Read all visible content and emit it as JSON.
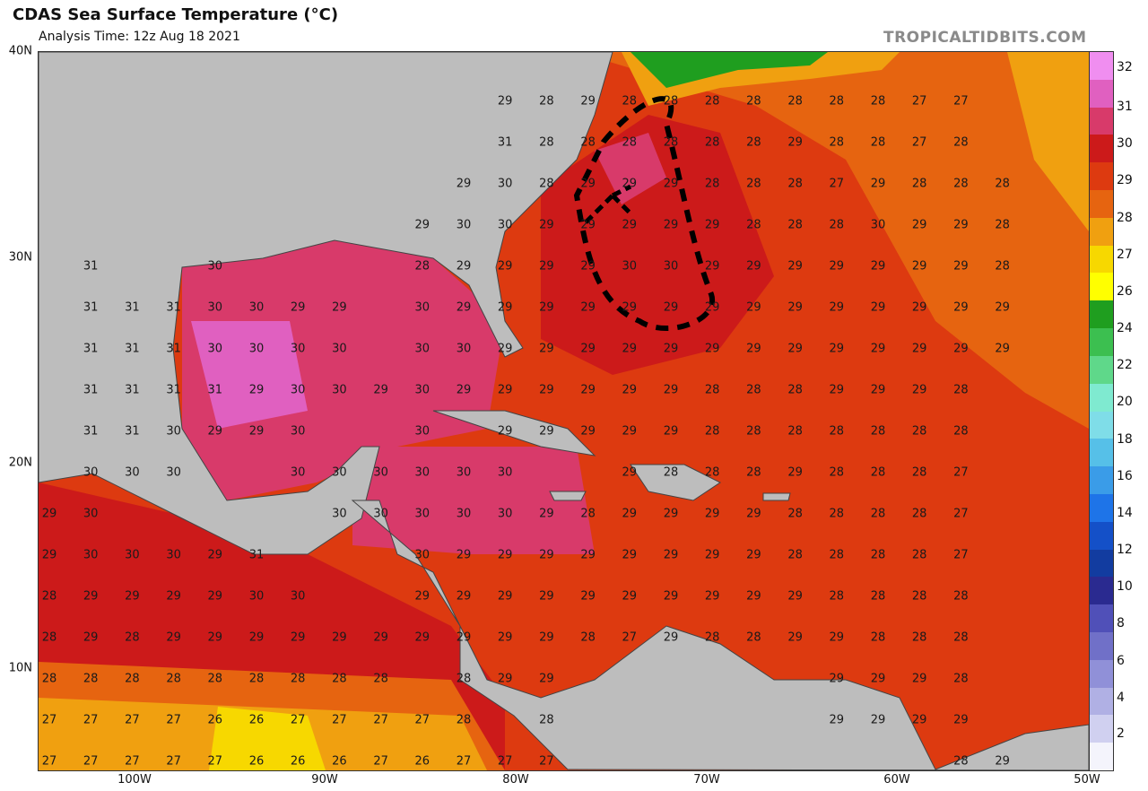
{
  "header": {
    "title": "CDAS Sea Surface Temperature (°C)",
    "subtitle": "Analysis Time: 12z Aug 18 2021",
    "brand": "TROPICALTIDBITS.COM"
  },
  "axes": {
    "lat_labels": [
      "40N",
      "30N",
      "20N",
      "10N"
    ],
    "lon_labels": [
      "100W",
      "90W",
      "80W",
      "70W",
      "60W",
      "50W"
    ]
  },
  "colorbar": {
    "labels": [
      "32",
      "31",
      "30",
      "29",
      "28",
      "27",
      "26",
      "24",
      "22",
      "20",
      "18",
      "16",
      "14",
      "12",
      "10",
      "8",
      "6",
      "4",
      "2"
    ],
    "colors": [
      "#f08ef0",
      "#e060c0",
      "#d83a6a",
      "#cc1a1a",
      "#dd3a10",
      "#e66410",
      "#f0a010",
      "#f7d800",
      "#ffff00",
      "#1f9e1f",
      "#3cbf50",
      "#5fd88a",
      "#7fead0",
      "#7fdde8",
      "#56c0e8",
      "#3a9ce8",
      "#1e74e8",
      "#1450c8",
      "#123ca0",
      "#2a2a90",
      "#5050b8",
      "#7070c8",
      "#9090d8",
      "#b0b0e4",
      "#d0d0f0",
      "#f4f4fc"
    ]
  },
  "sst_grid": {
    "rows": [
      {
        "lat": "row1",
        "vals": [
          "",
          "",
          "",
          "",
          "",
          "",
          "",
          "",
          "",
          "",
          "",
          "29",
          "28",
          "29",
          "28",
          "28",
          "28",
          "28",
          "28",
          "28",
          "28",
          "27",
          "27"
        ]
      },
      {
        "lat": "row2",
        "vals": [
          "",
          "",
          "",
          "",
          "",
          "",
          "",
          "",
          "",
          "",
          "",
          "31",
          "28",
          "28",
          "28",
          "28",
          "28",
          "28",
          "29",
          "28",
          "28",
          "27",
          "28"
        ]
      },
      {
        "lat": "row3",
        "vals": [
          "",
          "",
          "",
          "",
          "",
          "",
          "",
          "",
          "",
          "",
          "29",
          "30",
          "28",
          "29",
          "29",
          "29",
          "28",
          "28",
          "28",
          "27",
          "29",
          "28",
          "28",
          "28"
        ]
      },
      {
        "lat": "row4",
        "vals": [
          "",
          "",
          "",
          "",
          "",
          "",
          "",
          "",
          "",
          "29",
          "30",
          "30",
          "29",
          "29",
          "29",
          "29",
          "29",
          "28",
          "28",
          "28",
          "30",
          "29",
          "29",
          "28"
        ]
      },
      {
        "lat": "row5",
        "vals": [
          "",
          "31",
          "",
          "",
          "30",
          "",
          "",
          "",
          "",
          "28",
          "29",
          "29",
          "29",
          "29",
          "30",
          "30",
          "29",
          "29",
          "29",
          "29",
          "29",
          "29",
          "29",
          "28"
        ]
      },
      {
        "lat": "row6",
        "vals": [
          "",
          "31",
          "31",
          "31",
          "30",
          "30",
          "29",
          "29",
          "",
          "30",
          "29",
          "29",
          "29",
          "29",
          "29",
          "29",
          "29",
          "29",
          "29",
          "29",
          "29",
          "29",
          "29",
          "29"
        ]
      },
      {
        "lat": "row7",
        "vals": [
          "",
          "31",
          "31",
          "31",
          "30",
          "30",
          "30",
          "30",
          "",
          "30",
          "30",
          "29",
          "29",
          "29",
          "29",
          "29",
          "29",
          "29",
          "29",
          "29",
          "29",
          "29",
          "29",
          "29"
        ]
      },
      {
        "lat": "row8",
        "vals": [
          "",
          "31",
          "31",
          "31",
          "31",
          "29",
          "30",
          "30",
          "29",
          "30",
          "29",
          "29",
          "29",
          "29",
          "29",
          "29",
          "28",
          "28",
          "28",
          "29",
          "29",
          "29",
          "28",
          ""
        ]
      },
      {
        "lat": "row9",
        "vals": [
          "",
          "31",
          "31",
          "30",
          "29",
          "29",
          "30",
          "",
          "",
          "30",
          "",
          "29",
          "29",
          "29",
          "29",
          "29",
          "28",
          "28",
          "28",
          "28",
          "28",
          "28",
          "28",
          ""
        ]
      },
      {
        "lat": "row10",
        "vals": [
          "",
          "30",
          "30",
          "30",
          "",
          "",
          "30",
          "30",
          "30",
          "30",
          "30",
          "30",
          "",
          "",
          "29",
          "28",
          "28",
          "28",
          "29",
          "28",
          "28",
          "28",
          "27",
          ""
        ]
      },
      {
        "lat": "row11",
        "vals": [
          "29",
          "30",
          "",
          "",
          "",
          "",
          "",
          "30",
          "30",
          "30",
          "30",
          "30",
          "29",
          "28",
          "29",
          "29",
          "29",
          "29",
          "28",
          "28",
          "28",
          "28",
          "27",
          ""
        ]
      },
      {
        "lat": "row12",
        "vals": [
          "29",
          "30",
          "30",
          "30",
          "29",
          "31",
          "",
          "",
          "",
          "30",
          "29",
          "29",
          "29",
          "29",
          "29",
          "29",
          "29",
          "29",
          "28",
          "28",
          "28",
          "28",
          "27",
          ""
        ]
      },
      {
        "lat": "row13",
        "vals": [
          "28",
          "29",
          "29",
          "29",
          "29",
          "30",
          "30",
          "",
          "",
          "29",
          "29",
          "29",
          "29",
          "29",
          "29",
          "29",
          "29",
          "29",
          "29",
          "28",
          "28",
          "28",
          "28",
          ""
        ]
      },
      {
        "lat": "row14",
        "vals": [
          "28",
          "29",
          "28",
          "29",
          "29",
          "29",
          "29",
          "29",
          "29",
          "29",
          "29",
          "29",
          "29",
          "28",
          "27",
          "29",
          "28",
          "28",
          "29",
          "29",
          "28",
          "28",
          "28",
          ""
        ]
      },
      {
        "lat": "row15",
        "vals": [
          "28",
          "28",
          "28",
          "28",
          "28",
          "28",
          "28",
          "28",
          "28",
          "",
          "28",
          "29",
          "29",
          "",
          "",
          "",
          "",
          "",
          "",
          "29",
          "29",
          "29",
          "28",
          ""
        ]
      },
      {
        "lat": "row16",
        "vals": [
          "27",
          "27",
          "27",
          "27",
          "26",
          "26",
          "27",
          "27",
          "27",
          "27",
          "28",
          "",
          "28",
          "",
          "",
          "",
          "",
          "",
          "",
          "29",
          "29",
          "29",
          "29",
          ""
        ]
      },
      {
        "lat": "row17",
        "vals": [
          "27",
          "27",
          "27",
          "27",
          "27",
          "26",
          "26",
          "26",
          "27",
          "26",
          "27",
          "27",
          "27",
          "",
          "",
          "",
          "",
          "",
          "",
          "",
          "",
          "",
          "28",
          "29"
        ]
      }
    ]
  },
  "annotation": {
    "shape": "hand-drawn dashed loop with arrow",
    "color": "#000000"
  }
}
